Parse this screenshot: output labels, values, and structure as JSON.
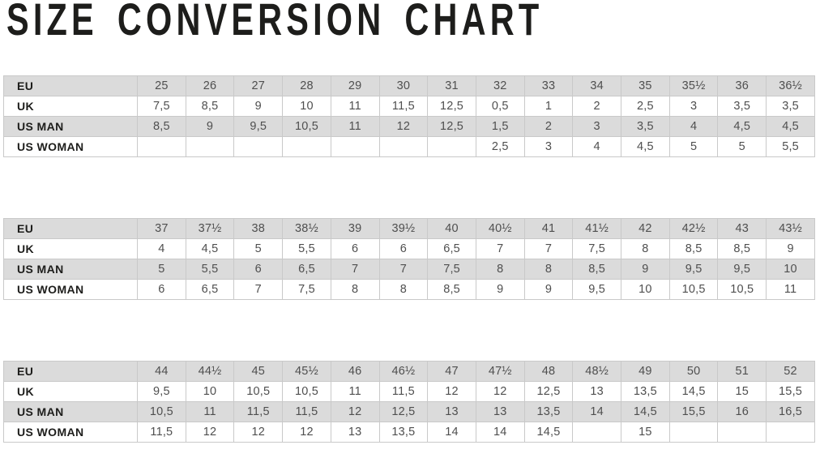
{
  "title": "SIZE CONVERSION CHART",
  "colors": {
    "shaded_row": "#dbdbdb",
    "grid_border": "#c9c9c9",
    "label_text": "#1d1d1b",
    "value_text": "#4f4f4f"
  },
  "chart_data": [
    {
      "type": "table",
      "name": "sizes-25-to-36half",
      "row_labels": [
        "EU",
        "UK",
        "US MAN",
        "US WOMAN"
      ],
      "rows": [
        [
          "25",
          "26",
          "27",
          "28",
          "29",
          "30",
          "31",
          "32",
          "33",
          "34",
          "35",
          "35½",
          "36",
          "36½"
        ],
        [
          "7,5",
          "8,5",
          "9",
          "10",
          "11",
          "11,5",
          "12,5",
          "0,5",
          "1",
          "2",
          "2,5",
          "3",
          "3,5",
          "3,5"
        ],
        [
          "8,5",
          "9",
          "9,5",
          "10,5",
          "11",
          "12",
          "12,5",
          "1,5",
          "2",
          "3",
          "3,5",
          "4",
          "4,5",
          "4,5"
        ],
        [
          "",
          "",
          "",
          "",
          "",
          "",
          "",
          "2,5",
          "3",
          "4",
          "4,5",
          "5",
          "5",
          "5,5"
        ]
      ]
    },
    {
      "type": "table",
      "name": "sizes-37-to-43half",
      "row_labels": [
        "EU",
        "UK",
        "US MAN",
        "US WOMAN"
      ],
      "rows": [
        [
          "37",
          "37½",
          "38",
          "38½",
          "39",
          "39½",
          "40",
          "40½",
          "41",
          "41½",
          "42",
          "42½",
          "43",
          "43½"
        ],
        [
          "4",
          "4,5",
          "5",
          "5,5",
          "6",
          "6",
          "6,5",
          "7",
          "7",
          "7,5",
          "8",
          "8,5",
          "8,5",
          "9"
        ],
        [
          "5",
          "5,5",
          "6",
          "6,5",
          "7",
          "7",
          "7,5",
          "8",
          "8",
          "8,5",
          "9",
          "9,5",
          "9,5",
          "10"
        ],
        [
          "6",
          "6,5",
          "7",
          "7,5",
          "8",
          "8",
          "8,5",
          "9",
          "9",
          "9,5",
          "10",
          "10,5",
          "10,5",
          "11"
        ]
      ]
    },
    {
      "type": "table",
      "name": "sizes-44-to-52",
      "row_labels": [
        "EU",
        "UK",
        "US MAN",
        "US WOMAN"
      ],
      "rows": [
        [
          "44",
          "44½",
          "45",
          "45½",
          "46",
          "46½",
          "47",
          "47½",
          "48",
          "48½",
          "49",
          "50",
          "51",
          "52"
        ],
        [
          "9,5",
          "10",
          "10,5",
          "10,5",
          "11",
          "11,5",
          "12",
          "12",
          "12,5",
          "13",
          "13,5",
          "14,5",
          "15",
          "15,5"
        ],
        [
          "10,5",
          "11",
          "11,5",
          "11,5",
          "12",
          "12,5",
          "13",
          "13",
          "13,5",
          "14",
          "14,5",
          "15,5",
          "16",
          "16,5"
        ],
        [
          "11,5",
          "12",
          "12",
          "12",
          "13",
          "13,5",
          "14",
          "14",
          "14,5",
          "",
          "15",
          "",
          "",
          ""
        ]
      ]
    }
  ]
}
